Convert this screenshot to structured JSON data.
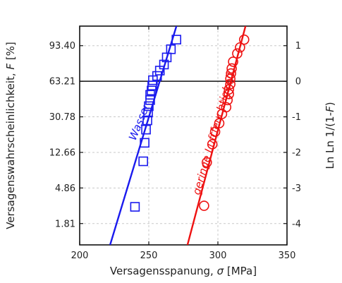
{
  "chart_data": {
    "type": "scatter",
    "xlabel": {
      "text": "Versagensspanung, ",
      "symbol": "σ",
      "unit": " [MPa]"
    },
    "ylabel_left": {
      "text": "Versagenswahrscheinlichkeit, ",
      "symbol": "F",
      "unit": " [%]"
    },
    "ylabel_right": {
      "text": "Ln Ln 1/(1-",
      "symbol": "F",
      "close": ")"
    },
    "xlim": [
      200,
      350
    ],
    "ylim": [
      -4.6,
      1.55
    ],
    "x_ticks": [
      "200",
      "250",
      "300",
      "350"
    ],
    "x_tick_values": [
      200,
      250,
      300,
      350
    ],
    "left_ticks": [
      "93.40",
      "63.21",
      "30.78",
      "12.66",
      "4.86",
      "1.81"
    ],
    "left_tick_values": [
      1,
      0,
      -1,
      -2,
      -3,
      -4
    ],
    "right_ticks": [
      "1",
      "0",
      "-1",
      "-2",
      "-3",
      "-4"
    ],
    "right_tick_values": [
      1,
      0,
      -1,
      -2,
      -3,
      -4
    ],
    "reference_line_y": 0,
    "grid": true,
    "series": [
      {
        "name": "Wasser",
        "color": "#1a1aee",
        "marker": "square",
        "points": [
          [
            240,
            -3.53
          ],
          [
            246,
            -2.25
          ],
          [
            247,
            -1.73
          ],
          [
            248,
            -1.36
          ],
          [
            249,
            -1.1
          ],
          [
            249.5,
            -0.88
          ],
          [
            250,
            -0.7
          ],
          [
            251,
            -0.53
          ],
          [
            251,
            -0.38
          ],
          [
            252,
            -0.26
          ],
          [
            252.5,
            -0.12
          ],
          [
            253,
            0.03
          ],
          [
            256,
            0.15
          ],
          [
            258,
            0.3
          ],
          [
            261,
            0.47
          ],
          [
            263,
            0.67
          ],
          [
            266,
            0.9
          ],
          [
            270,
            1.17
          ]
        ],
        "fit": [
          [
            222,
            -4.6
          ],
          [
            270,
            1.55
          ]
        ]
      },
      {
        "name": "geringe Luftfeuchtigkeit",
        "color": "#ee1111",
        "marker": "circle",
        "points": [
          [
            290,
            -3.5
          ],
          [
            292,
            -2.28
          ],
          [
            296,
            -1.77
          ],
          [
            298,
            -1.42
          ],
          [
            301,
            -1.18
          ],
          [
            303,
            -0.92
          ],
          [
            306,
            -0.73
          ],
          [
            307,
            -0.53
          ],
          [
            308,
            -0.36
          ],
          [
            308,
            -0.23
          ],
          [
            309,
            -0.08
          ],
          [
            309,
            0.07
          ],
          [
            309.5,
            0.22
          ],
          [
            310,
            0.36
          ],
          [
            311,
            0.55
          ],
          [
            314,
            0.78
          ],
          [
            316,
            0.95
          ],
          [
            319,
            1.17
          ]
        ],
        "fit": [
          [
            278,
            -4.6
          ],
          [
            320,
            1.55
          ]
        ]
      }
    ]
  }
}
